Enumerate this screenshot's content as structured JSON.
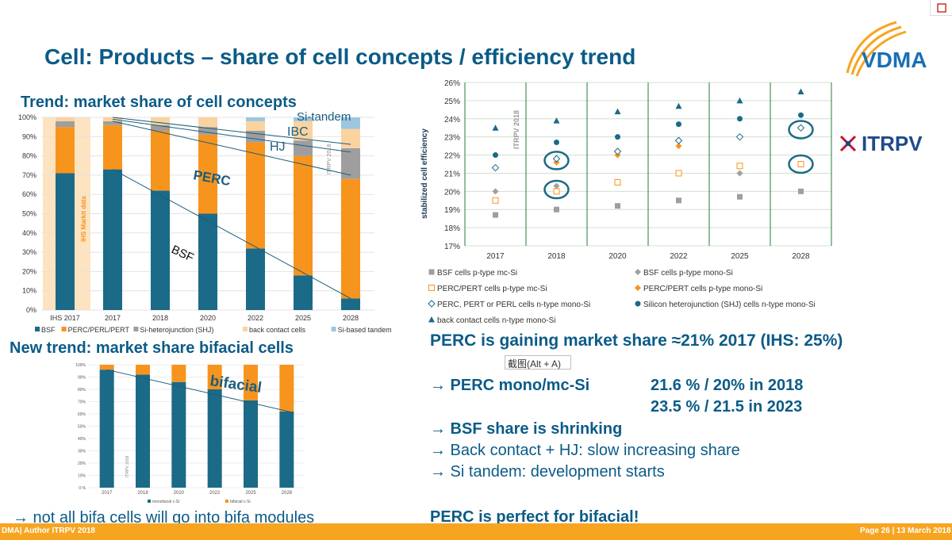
{
  "slide_title": "Cell: Products – share of cell concepts / efficiency trend",
  "left_top_title": "Trend: market share of cell concepts",
  "left_bottom_title": "New trend: market share bifacial cells",
  "left_bottom_note": "→ not all bifa cells will go into bifa modules",
  "right_headline": "PERC is gaining market share ≈21% 2017 (IHS: 25%)",
  "overlay_tooltip": "截图(Alt + A)",
  "perc_line1_label": "→ PERC mono/mc-Si",
  "perc_line1_value": "21.6 % / 20% in 2018",
  "perc_line2_value": "23.5 % / 21.5 in 2023",
  "bullet_bsf": "→ BSF share is shrinking",
  "bullet_bc": "→ Back contact + HJ: slow increasing share",
  "bullet_tandem": "→ Si tandem: development starts",
  "right_footer": "PERC is perfect for bifacial!",
  "footer_left": "DMA| Author ITRPV 2018",
  "footer_right": "Page 26 | 13 March 2018",
  "logos": {
    "vdma": "VDMA",
    "itrpv": "ITRPV"
  },
  "colors": {
    "teal": "#1b6a87",
    "orange": "#f7941d",
    "gray": "#9e9e9e",
    "light_orange": "#fbd3a0",
    "light_blue": "#9dc6e0",
    "title_blue": "#0b5b87",
    "footer_orange": "#f7a521"
  },
  "chart_data": [
    {
      "type": "bar",
      "stacked": true,
      "ylim": [
        0,
        100
      ],
      "yticks": [
        "0%",
        "10%",
        "20%",
        "30%",
        "40%",
        "50%",
        "60%",
        "70%",
        "80%",
        "90%",
        "100%"
      ],
      "categories": [
        "IHS 2017",
        "2017",
        "2018",
        "2020",
        "2022",
        "2025",
        "2028"
      ],
      "series": [
        {
          "name": "BSF",
          "values": [
            71,
            73,
            62,
            50,
            32,
            18,
            6
          ]
        },
        {
          "name": "PERC/PERL/PERT",
          "values": [
            24,
            23,
            31,
            41,
            55,
            62,
            62
          ]
        },
        {
          "name": "Si-heterojunction (SHJ)",
          "values": [
            3,
            2,
            3,
            4,
            6,
            8,
            16
          ]
        },
        {
          "name": "back contact cells",
          "values": [
            2,
            2,
            4,
            5,
            5,
            10,
            10
          ]
        },
        {
          "name": "Si-based tandem",
          "values": [
            0,
            0,
            0,
            0,
            2,
            2,
            6
          ]
        }
      ],
      "annotations": [
        "Si-tandem",
        "IBC",
        "HJ",
        "PERC",
        "BSF",
        "IHS Markit data",
        "ITRPV 2018"
      ],
      "legend": "bottom"
    },
    {
      "type": "bar",
      "stacked": true,
      "ylim": [
        0,
        100
      ],
      "yticks": [
        "0 %",
        "10%",
        "20%",
        "30%",
        "40%",
        "50%",
        "60%",
        "70%",
        "80%",
        "90%",
        "100%"
      ],
      "categories": [
        "2017",
        "2018",
        "2020",
        "2022",
        "2025",
        "2028"
      ],
      "series": [
        {
          "name": "monofacial c-Si",
          "values": [
            96,
            92,
            86,
            80,
            71,
            62
          ]
        },
        {
          "name": "bifacial c-Si",
          "values": [
            4,
            8,
            14,
            20,
            29,
            38
          ]
        }
      ],
      "annotations": [
        "bifacial",
        "ITRPV 2018"
      ],
      "legend": "bottom"
    },
    {
      "type": "scatter",
      "ylabel": "stabilized cell efficiency",
      "ylim": [
        17,
        26
      ],
      "yticks": [
        "17%",
        "18%",
        "19%",
        "20%",
        "21%",
        "22%",
        "23%",
        "24%",
        "25%",
        "26%"
      ],
      "categories": [
        "2017",
        "2018",
        "2020",
        "2022",
        "2025",
        "2028"
      ],
      "series": [
        {
          "name": "BSF cells p-type mc-Si",
          "values": [
            18.7,
            19.0,
            19.2,
            19.5,
            19.7,
            20.0
          ]
        },
        {
          "name": "BSF cells p-type mono-Si",
          "values": [
            20.0,
            20.3,
            20.5,
            21.0,
            21.0,
            21.5
          ]
        },
        {
          "name": "PERC/PERT cells p-type mc-Si",
          "values": [
            19.5,
            20.0,
            20.5,
            21.0,
            21.4,
            21.5
          ]
        },
        {
          "name": "PERC/PERT cells p-type mono-Si",
          "values": [
            21.3,
            21.6,
            22.0,
            22.5,
            23.0,
            23.5
          ]
        },
        {
          "name": "PERC, PERT or PERL cells n-type mono-Si",
          "values": [
            21.3,
            21.8,
            22.2,
            22.8,
            23.0,
            23.5
          ]
        },
        {
          "name": "Silicon heterojunction (SHJ) cells n-type mono-Si",
          "values": [
            22.0,
            22.7,
            23.0,
            23.7,
            24.0,
            24.2
          ]
        },
        {
          "name": "back contact cells n-type mono-Si",
          "values": [
            23.5,
            23.9,
            24.4,
            24.7,
            25.0,
            25.5
          ]
        }
      ],
      "annotations": [
        "ITRPV 2018"
      ],
      "legend": "bottom"
    }
  ]
}
